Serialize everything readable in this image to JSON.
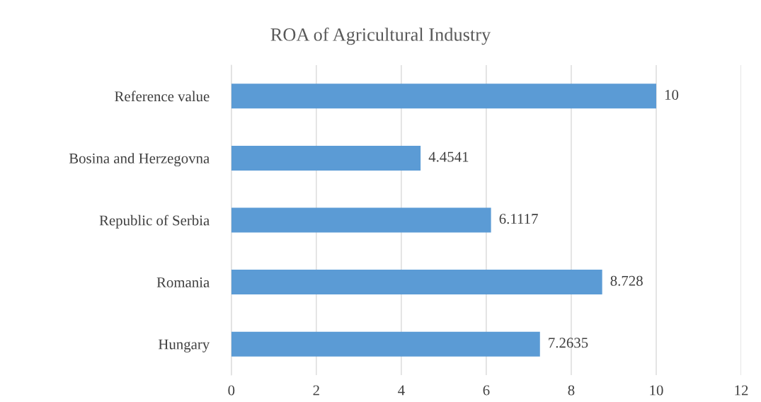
{
  "chart_data": {
    "type": "bar",
    "orientation": "horizontal",
    "title": "ROA of Agricultural Industry",
    "categories": [
      "Reference value",
      "Bosina and Herzegovna",
      "Republic of Serbia",
      "Romania",
      "Hungary"
    ],
    "values": [
      10,
      4.4541,
      6.1117,
      8.728,
      7.2635
    ],
    "color": "#5b9bd5",
    "xlim": [
      0,
      12
    ],
    "xticks": [
      0,
      2,
      4,
      6,
      8,
      10,
      12
    ],
    "grid": "x",
    "data_labels": true
  }
}
